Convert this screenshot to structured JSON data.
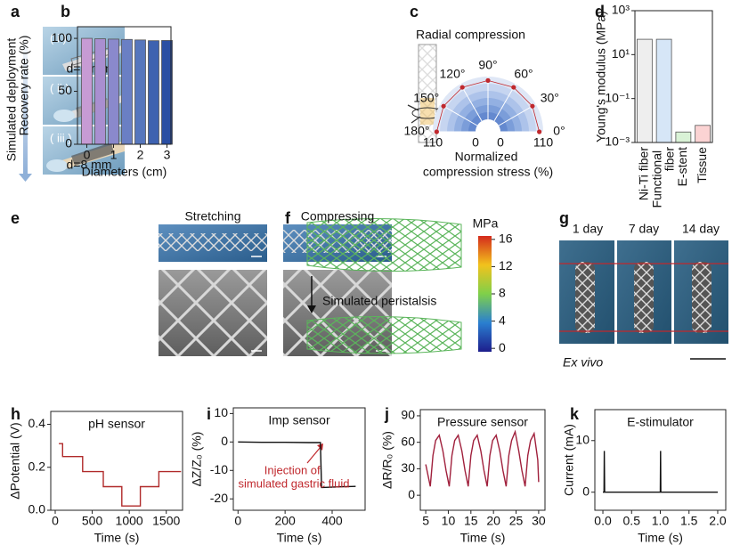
{
  "panel_labels": [
    "a",
    "b",
    "c",
    "d",
    "e",
    "f",
    "g",
    "h",
    "i",
    "j",
    "k"
  ],
  "panel_a": {
    "side_label": "Simulated deployment",
    "steps": [
      "( i )",
      "( ii )",
      "( iii )"
    ],
    "notes": [
      "d=5 mm",
      "d=8 mm"
    ]
  },
  "panel_e": {
    "titles": [
      "Stretching",
      "Compressing"
    ]
  },
  "panel_f": {
    "label": "Simulated peristalsis",
    "colorbar": {
      "title": "MPa",
      "clim": [
        -0.5,
        16.5
      ],
      "ticks": [
        0,
        4,
        8,
        12,
        16
      ]
    }
  },
  "panel_g": {
    "days": [
      "1 day",
      "7 day",
      "14 day"
    ],
    "caption": "Ex vivo"
  },
  "chart_data": [
    {
      "type": "bar",
      "ylabel": "Recovery rate (%)",
      "xlabel": "Diameters (cm)",
      "x": [
        0,
        0.5,
        1,
        1.5,
        2,
        2.5,
        3
      ],
      "values": [
        100,
        99.6,
        99.3,
        99,
        98.5,
        97.8,
        98
      ],
      "colors": [
        "#c79bd4",
        "#a98fd0",
        "#8a89cc",
        "#6a7fc4",
        "#5676bd",
        "#3e62b0",
        "#2a4ea3"
      ],
      "xlim": [
        -0.35,
        3.15
      ],
      "xticks": [
        0,
        1,
        2,
        3
      ],
      "ylim": [
        0,
        111
      ],
      "yticks": [
        0,
        50,
        100
      ]
    },
    {
      "type": "polar",
      "title": "Radial compression",
      "xlabel": "Normalized compression stress (%)",
      "theta": [
        0,
        30,
        60,
        90,
        120,
        150,
        180
      ],
      "values": [
        100,
        100,
        100,
        100,
        100,
        100,
        100
      ],
      "color": "#c0282d",
      "angle_ticks": [
        {
          "value": 0,
          "label": "0°"
        },
        {
          "value": 30,
          "label": "30°"
        },
        {
          "value": 60,
          "label": "60°"
        },
        {
          "value": 90,
          "label": "90°"
        },
        {
          "value": 120,
          "label": "120°"
        },
        {
          "value": 150,
          "label": "150°"
        },
        {
          "value": 180,
          "label": "180°"
        }
      ],
      "rlim": [
        0,
        110
      ],
      "rticks": [
        0,
        110
      ]
    },
    {
      "type": "bar",
      "ylabel": "Young's modulus (MPa)",
      "log_y": true,
      "categories": [
        "Ni-Ti fiber",
        "Functional fiber",
        "E-stent",
        "Tissue"
      ],
      "values": [
        50,
        50,
        0.003,
        0.006
      ],
      "colors": [
        "#eeeeee",
        "#d6e6f7",
        "#d9f2d6",
        "#fbd3d3"
      ],
      "ylim": [
        0.001,
        1000
      ],
      "yticks": [
        {
          "value": 0.001,
          "label": "10⁻³"
        },
        {
          "value": 0.1,
          "label": "10⁻¹"
        },
        {
          "value": 10,
          "label": "10¹"
        },
        {
          "value": 1000,
          "label": "10³"
        }
      ]
    },
    {
      "type": "line",
      "title": "pH sensor",
      "ylabel": "ΔPotential (V)",
      "xlabel": "Time (s)",
      "color": "#b02a2a",
      "x": [
        50,
        100,
        100,
        370,
        370,
        650,
        650,
        900,
        900,
        1150,
        1150,
        1400,
        1400,
        1700
      ],
      "values": [
        0.31,
        0.31,
        0.25,
        0.25,
        0.18,
        0.18,
        0.11,
        0.11,
        0.02,
        0.02,
        0.11,
        0.11,
        0.18,
        0.18
      ],
      "xlim": [
        -60,
        1720
      ],
      "xticks": [
        0,
        500,
        1000,
        1500
      ],
      "ylim": [
        0,
        0.46
      ],
      "yticks": [
        {
          "value": 0,
          "label": "0.0"
        },
        0.2,
        0.4
      ]
    },
    {
      "type": "line",
      "title": "Imp sensor",
      "ylabel": "ΔZ/Z₀ (%)",
      "xlabel": "Time (s)",
      "color": "#111111",
      "annotation": "Injection of simulated gastric fluid",
      "annotation_color": "#c0282d",
      "x": [
        0,
        100,
        200,
        300,
        350,
        355,
        360,
        420,
        500
      ],
      "values": [
        0,
        -0.1,
        -0.1,
        -0.2,
        -0.2,
        -16,
        -16,
        -15.8,
        -15.6
      ],
      "xlim": [
        -20,
        540
      ],
      "xticks": [
        0,
        200,
        400
      ],
      "ylim": [
        -24,
        12
      ],
      "yticks": [
        -20,
        -10,
        0,
        10
      ]
    },
    {
      "type": "line",
      "title": "Pressure sensor",
      "ylabel": "ΔR/R₀ (%)",
      "xlabel": "Time (s)",
      "color": "#a0203c",
      "x": [
        5,
        6,
        6.6,
        7.2,
        8,
        8.8,
        9.5,
        10.2,
        10.8,
        11.4,
        12.2,
        13,
        13.7,
        14.4,
        15,
        15.6,
        16.4,
        17.2,
        17.9,
        18.6,
        19.2,
        19.8,
        20.6,
        21.4,
        22.1,
        22.8,
        23.4,
        24,
        24.8,
        25.6,
        26.3,
        27,
        27.6,
        28.2,
        29,
        29.8,
        30
      ],
      "values": [
        35,
        10,
        45,
        62,
        68,
        50,
        28,
        10,
        45,
        62,
        68,
        50,
        28,
        10,
        45,
        62,
        68,
        50,
        28,
        10,
        45,
        62,
        68,
        50,
        28,
        10,
        45,
        62,
        72,
        50,
        28,
        10,
        45,
        62,
        70,
        40,
        15
      ],
      "xlim": [
        3.8,
        31.4
      ],
      "xticks": [
        5,
        10,
        15,
        20,
        25,
        30
      ],
      "ylim": [
        -17,
        97
      ],
      "yticks": [
        0,
        30,
        60,
        90
      ]
    },
    {
      "type": "line",
      "title": "E-stimulator",
      "ylabel": "Current (mA)",
      "xlabel": "Time (s)",
      "color": "#111111",
      "x": [
        0,
        0.02,
        0.025,
        0.03,
        1.0,
        1.005,
        1.01,
        2.0
      ],
      "values": [
        0,
        0,
        8,
        0,
        0,
        8,
        0,
        0
      ],
      "xlim": [
        -0.14,
        2.14
      ],
      "xticks": [
        {
          "value": 0,
          "label": "0.0"
        },
        0.5,
        {
          "value": 1,
          "label": "1.0"
        },
        1.5,
        {
          "value": 2,
          "label": "2.0"
        }
      ],
      "ylim": [
        -3.5,
        16
      ],
      "yticks": [
        0,
        10
      ]
    }
  ]
}
